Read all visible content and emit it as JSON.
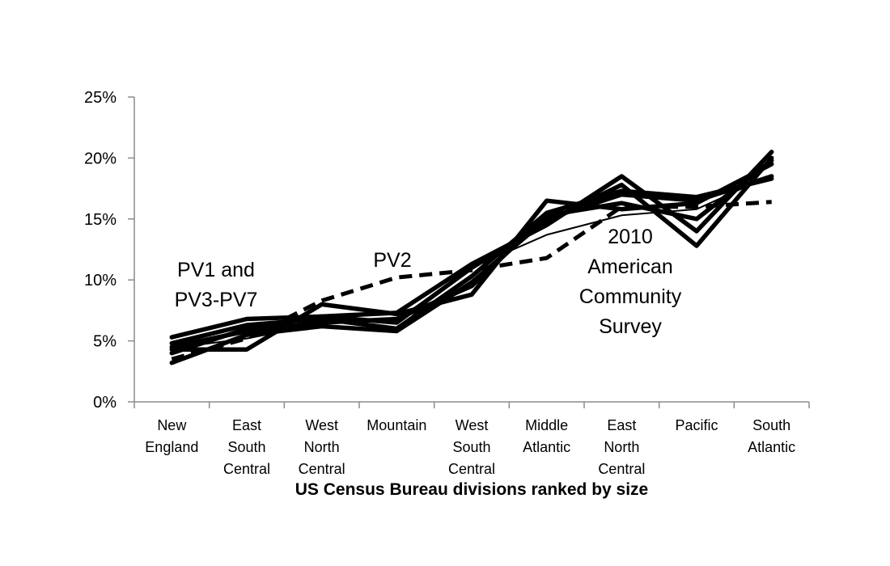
{
  "chart_data": {
    "type": "line",
    "title": "",
    "xlabel": "US Census Bureau divisions ranked by size",
    "ylabel": "",
    "ylim": [
      0,
      25
    ],
    "yticks": [
      0,
      5,
      10,
      15,
      20,
      25
    ],
    "ytick_labels": [
      "0%",
      "5%",
      "10%",
      "15%",
      "20%",
      "25%"
    ],
    "grid": false,
    "legend": "none",
    "categories": [
      [
        "New",
        "England"
      ],
      [
        "East",
        "South",
        "Central"
      ],
      [
        "West",
        "North",
        "Central"
      ],
      [
        "Mountain"
      ],
      [
        "West",
        "South",
        "Central"
      ],
      [
        "Middle",
        "Atlantic"
      ],
      [
        "East",
        "North",
        "Central"
      ],
      [
        "Pacific"
      ],
      [
        "South",
        "Atlantic"
      ]
    ],
    "series": [
      {
        "style": "solid-thick",
        "values": [
          5.3,
          6.8,
          7.0,
          7.3,
          11.3,
          14.5,
          18.5,
          14.0,
          20.5
        ]
      },
      {
        "style": "solid-thick",
        "values": [
          4.3,
          4.3,
          8.0,
          7.2,
          8.8,
          16.5,
          15.8,
          16.3,
          19.5
        ]
      },
      {
        "style": "solid-thick",
        "values": [
          3.2,
          5.5,
          6.2,
          5.8,
          9.8,
          15.0,
          17.0,
          16.5,
          18.5
        ]
      },
      {
        "style": "solid-thick",
        "values": [
          4.0,
          6.0,
          7.0,
          6.5,
          11.0,
          14.8,
          17.8,
          12.8,
          20.0
        ]
      },
      {
        "style": "solid-thick",
        "values": [
          4.5,
          5.8,
          6.5,
          6.8,
          9.5,
          15.3,
          16.3,
          15.0,
          19.8
        ]
      },
      {
        "style": "solid-thick",
        "values": [
          4.8,
          6.3,
          6.8,
          6.0,
          10.3,
          15.5,
          17.3,
          16.8,
          18.3
        ]
      },
      {
        "style": "solid-thin",
        "values": [
          4.4,
          5.2,
          6.4,
          6.7,
          11.0,
          13.7,
          15.3,
          15.8,
          18.6
        ]
      },
      {
        "style": "dashed",
        "values": [
          3.5,
          5.2,
          8.3,
          10.2,
          10.8,
          11.8,
          16.0,
          16.0,
          16.4
        ]
      }
    ],
    "annotations": [
      {
        "lines": [
          "PV1 and",
          "PV3-PV7"
        ]
      },
      {
        "lines": [
          "PV2"
        ]
      },
      {
        "lines": [
          "2010",
          "American",
          "Community",
          "Survey"
        ]
      }
    ]
  }
}
